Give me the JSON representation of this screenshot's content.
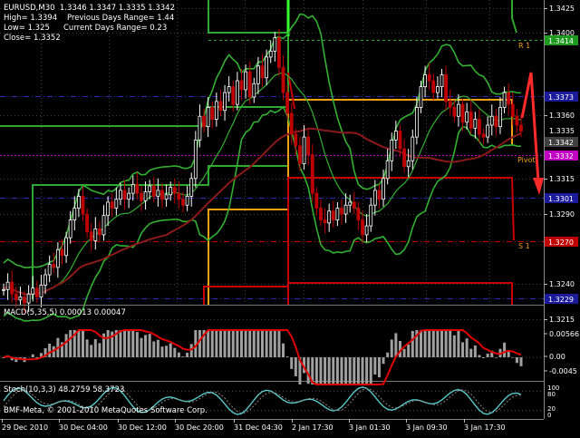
{
  "header": {
    "symbol_line": "EURUSD,M30  1.3346 1.3347 1.3335 1.3342",
    "high_label": "High= 1.3394",
    "prev_range_label": "Previous Days Range= 1.44",
    "low_label": "Low= 1.325",
    "current_range_label": "Current Days Range= 0.23",
    "close_label": "Close= 1.3352"
  },
  "price_axis": {
    "ticks": [
      "1.3425",
      "1.3400",
      "1.3360",
      "1.3315",
      "1.3290",
      "1.3240",
      "1.3215"
    ],
    "badges": [
      {
        "label": "1.3414",
        "color": "#1e9a1e"
      },
      {
        "label": "1.3373",
        "color": "#1a1a9a"
      },
      {
        "label": "1.3342",
        "color": "#404040"
      },
      {
        "label": "1.3332",
        "color": "#c000c0"
      },
      {
        "label": "1.3301",
        "color": "#1a1a9a"
      },
      {
        "label": "1.3270",
        "color": "#c00000"
      },
      {
        "label": "1.3229",
        "color": "#1a1a9a"
      }
    ],
    "overlap_tick": "1.3335"
  },
  "level_labels": {
    "r1": "R 1",
    "pivot": "Pivot",
    "s1": "S 1"
  },
  "macd": {
    "label": "MACD(5,35,5) 0.00013 0.00047",
    "ticks": [
      "0.00566",
      "0.00",
      "-0.0045"
    ]
  },
  "stoch": {
    "label": "Stoch(10,3,3) 48.2759 58.3723",
    "ticks": [
      "100",
      "80",
      "20",
      "0"
    ]
  },
  "footer": {
    "copyright": "BMF-Meta, © 2001-2010 MetaQuotes Software Corp."
  },
  "time_axis": {
    "labels": [
      "29 Dec 2010",
      "30 Dec 04:00",
      "30 Dec 12:00",
      "30 Dec 20:00",
      "31 Dec 04:30",
      "2 Jan 17:30",
      "3 Jan 01:30",
      "3 Jan 09:30",
      "3 Jan 17:30"
    ]
  },
  "colors": {
    "background": "#000000",
    "grid": "#3a3a3a",
    "up_candle": "#ffffff",
    "down_candle": "#c00000",
    "bollinger": "#33b033",
    "ma": "#8b1a1a",
    "support_green": "#2ea82e",
    "orange_level": "#f0a010",
    "red_level": "#c80000",
    "blue_level": "#2a2ab0",
    "arrow": "#ff2a2a"
  }
}
